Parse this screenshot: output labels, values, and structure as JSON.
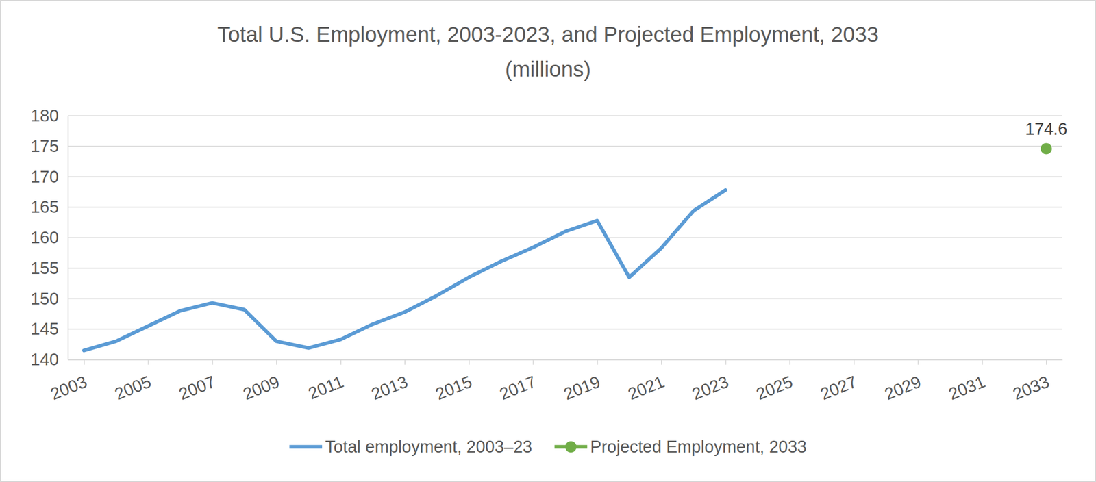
{
  "chart_data": {
    "type": "line",
    "title": "Total U.S. Employment, 2003-2023, and Projected Employment, 2033",
    "subtitle": "(millions)",
    "x": [
      2003,
      2004,
      2005,
      2006,
      2007,
      2008,
      2009,
      2010,
      2011,
      2012,
      2013,
      2014,
      2015,
      2016,
      2017,
      2018,
      2019,
      2020,
      2021,
      2022,
      2023,
      2033
    ],
    "series": [
      {
        "name": "Total employment, 2003–23",
        "color": "#5b9bd5",
        "type": "line",
        "values": [
          141.5,
          143.0,
          145.5,
          148.0,
          149.3,
          148.2,
          143.0,
          141.9,
          143.3,
          145.8,
          147.8,
          150.5,
          153.5,
          156.1,
          158.4,
          161.0,
          162.8,
          153.5,
          158.3,
          164.4,
          167.8,
          null
        ]
      },
      {
        "name": "Projected Employment, 2033",
        "color": "#70ad47",
        "type": "scatter",
        "marker": "circle",
        "data_labels": true,
        "values": [
          null,
          null,
          null,
          null,
          null,
          null,
          null,
          null,
          null,
          null,
          null,
          null,
          null,
          null,
          null,
          null,
          null,
          null,
          null,
          null,
          null,
          174.6
        ]
      }
    ],
    "xlim": [
      2002.5,
      2033.5
    ],
    "xticks": [
      2003,
      2005,
      2007,
      2009,
      2011,
      2013,
      2015,
      2017,
      2019,
      2021,
      2023,
      2025,
      2027,
      2029,
      2031,
      2033
    ],
    "ylim": [
      140,
      180
    ],
    "yticks": [
      140,
      145,
      150,
      155,
      160,
      165,
      170,
      175,
      180
    ],
    "grid": true,
    "legend": "bottom"
  }
}
